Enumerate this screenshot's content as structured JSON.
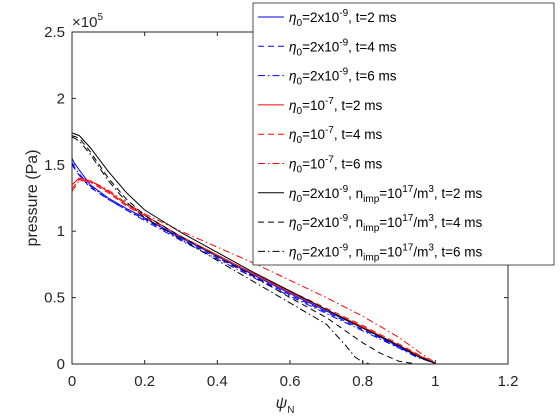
{
  "chart_data": {
    "type": "line",
    "xlabel": "ψ",
    "xlabel_subscript": "N",
    "ylabel": "pressure (Pa)",
    "y_multiplier_base": "×10",
    "y_multiplier_exp": "5",
    "xlim": [
      0,
      1.2
    ],
    "ylim": [
      0,
      250000
    ],
    "xticks": [
      0,
      0.2,
      0.4,
      0.6,
      0.8,
      1,
      1.2
    ],
    "xtick_labels": [
      "0",
      "0.2",
      "0.4",
      "0.6",
      "0.8",
      "1",
      "1.2"
    ],
    "yticks": [
      0,
      50000,
      100000,
      150000,
      200000,
      250000
    ],
    "ytick_labels": [
      "0",
      "0.5",
      "1",
      "1.5",
      "2",
      "2.5"
    ],
    "legend_position": "top-right",
    "series": [
      {
        "color": "#0000ff",
        "dash": "solid",
        "legend": {
          "pre": "η",
          "sub": "0",
          "a": "=2x10",
          "sup": "-9",
          "b": ", t=2 ms"
        },
        "x": [
          0,
          0.005,
          0.02,
          0.05,
          0.1,
          0.15,
          0.2,
          0.3,
          0.4,
          0.5,
          0.6,
          0.7,
          0.8,
          0.9,
          0.95,
          1.0
        ],
        "y": [
          155000,
          152000,
          146000,
          135000,
          125000,
          117000,
          110000,
          95000,
          81000,
          67000,
          53000,
          40000,
          27000,
          13000,
          6000,
          500
        ]
      },
      {
        "color": "#0000ff",
        "dash": "dashed",
        "legend": {
          "pre": "η",
          "sub": "0",
          "a": "=2x10",
          "sup": "-9",
          "b": ", t=4 ms"
        },
        "x": [
          0,
          0.005,
          0.02,
          0.05,
          0.1,
          0.15,
          0.2,
          0.3,
          0.4,
          0.5,
          0.6,
          0.7,
          0.8,
          0.9,
          0.95,
          1.0
        ],
        "y": [
          150000,
          148000,
          142000,
          133000,
          124000,
          116000,
          109000,
          94000,
          80000,
          66000,
          52000,
          39000,
          26000,
          12500,
          5500,
          500
        ]
      },
      {
        "color": "#0000ff",
        "dash": "dashdot",
        "legend": {
          "pre": "η",
          "sub": "0",
          "a": "=2x10",
          "sup": "-9",
          "b": ", t=6 ms"
        },
        "x": [
          0,
          0.005,
          0.02,
          0.05,
          0.1,
          0.15,
          0.2,
          0.3,
          0.4,
          0.5,
          0.6,
          0.7,
          0.8,
          0.9,
          0.95,
          1.0
        ],
        "y": [
          152000,
          149000,
          143000,
          134000,
          124000,
          116000,
          108000,
          93000,
          79000,
          65000,
          51000,
          38000,
          25000,
          12000,
          5000,
          500
        ]
      },
      {
        "color": "#ff0000",
        "dash": "solid",
        "legend": {
          "pre": "η",
          "sub": "0",
          "a": "=10",
          "sup": "-7",
          "b": ", t=2 ms"
        },
        "x": [
          0,
          0.02,
          0.05,
          0.1,
          0.15,
          0.2,
          0.3,
          0.4,
          0.5,
          0.6,
          0.7,
          0.8,
          0.9,
          0.95,
          1.0
        ],
        "y": [
          135000,
          140000,
          138000,
          130000,
          120000,
          112000,
          96000,
          82000,
          68000,
          54000,
          41000,
          28000,
          14000,
          7000,
          500
        ]
      },
      {
        "color": "#ff0000",
        "dash": "dashed",
        "legend": {
          "pre": "η",
          "sub": "0",
          "a": "=10",
          "sup": "-7",
          "b": ", t=4 ms"
        },
        "x": [
          0,
          0.02,
          0.05,
          0.1,
          0.15,
          0.2,
          0.3,
          0.4,
          0.5,
          0.6,
          0.7,
          0.8,
          0.9,
          0.95,
          1.0
        ],
        "y": [
          132000,
          139000,
          137000,
          129000,
          119000,
          111000,
          96000,
          82000,
          68000,
          55000,
          42000,
          29000,
          15000,
          7500,
          500
        ]
      },
      {
        "color": "#ff0000",
        "dash": "dashdot",
        "legend": {
          "pre": "η",
          "sub": "0",
          "a": "=10",
          "sup": "-7",
          "b": ", t=6 ms"
        },
        "x": [
          0,
          0.02,
          0.05,
          0.1,
          0.15,
          0.2,
          0.3,
          0.4,
          0.5,
          0.6,
          0.7,
          0.8,
          0.9,
          0.95,
          1.0
        ],
        "y": [
          130000,
          138000,
          138000,
          131000,
          121000,
          113000,
          100000,
          88000,
          76000,
          63000,
          50000,
          36000,
          20000,
          10000,
          800
        ]
      },
      {
        "color": "#000000",
        "dash": "solid",
        "legend": {
          "pre": "η",
          "sub": "0",
          "a": "=2x10",
          "sup": "-9",
          "b": ", n",
          "sub2": "imp",
          "c": "=10",
          "sup2": "17",
          "d": "/m",
          "sup3": "3",
          "e": ", t=2 ms"
        },
        "x": [
          0,
          0.02,
          0.05,
          0.1,
          0.15,
          0.2,
          0.3,
          0.4,
          0.5,
          0.6,
          0.7,
          0.8,
          0.9,
          0.95,
          1.0
        ],
        "y": [
          174000,
          172000,
          163000,
          145000,
          129000,
          116000,
          99000,
          84000,
          69000,
          55000,
          41000,
          27000,
          14000,
          6000,
          500
        ]
      },
      {
        "color": "#000000",
        "dash": "dashed",
        "legend": {
          "pre": "η",
          "sub": "0",
          "a": "=2x10",
          "sup": "-9",
          "b": ", n",
          "sub2": "imp",
          "c": "=10",
          "sup2": "17",
          "d": "/m",
          "sup3": "3",
          "e": ", t=4 ms"
        },
        "x": [
          0,
          0.02,
          0.05,
          0.1,
          0.15,
          0.2,
          0.3,
          0.4,
          0.5,
          0.6,
          0.7,
          0.8,
          0.85,
          0.9,
          0.95
        ],
        "y": [
          172000,
          170000,
          160000,
          140000,
          124000,
          112000,
          96000,
          81000,
          66000,
          50000,
          35000,
          16000,
          8000,
          2000,
          0
        ]
      },
      {
        "color": "#000000",
        "dash": "dashdot",
        "legend": {
          "pre": "η",
          "sub": "0",
          "a": "=2x10",
          "sup": "-9",
          "b": ", n",
          "sub2": "imp",
          "c": "=10",
          "sup2": "17",
          "d": "/m",
          "sup3": "3",
          "e": ", t=6 ms"
        },
        "x": [
          0,
          0.02,
          0.05,
          0.1,
          0.15,
          0.2,
          0.3,
          0.4,
          0.5,
          0.6,
          0.7,
          0.75,
          0.78,
          0.8,
          0.82
        ],
        "y": [
          171000,
          168000,
          158000,
          138000,
          122000,
          110000,
          94000,
          78000,
          62000,
          46000,
          30000,
          15000,
          5000,
          1500,
          0
        ]
      }
    ]
  }
}
